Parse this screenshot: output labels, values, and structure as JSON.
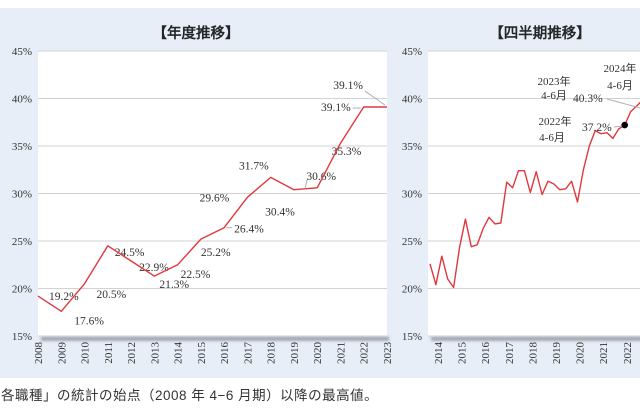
{
  "page": {
    "caption": "各職種」の統計の始点（2008 年 4−6 月期）以降の最高値。"
  },
  "colors": {
    "board_bg": "#e8eef8",
    "plot_bg": "#ffffff",
    "grid": "#d2d2d2",
    "line": "#e0383e",
    "marker": "#000000",
    "leader": "#b0b0b0",
    "text": "#333333",
    "shadow": "#8d939e"
  },
  "chart_data": [
    {
      "type": "line",
      "title": "【年度推移】",
      "categories": [
        "2008",
        "2009",
        "2010",
        "2011",
        "2012",
        "2013",
        "2014",
        "2015",
        "2016",
        "2017",
        "2018",
        "2019",
        "2020",
        "2021",
        "2022",
        "2023"
      ],
      "values": [
        19.2,
        17.6,
        20.5,
        24.5,
        22.9,
        21.3,
        22.5,
        25.2,
        26.4,
        29.6,
        31.7,
        30.4,
        30.6,
        35.3,
        39.1,
        39.1
      ],
      "xlabel": "",
      "ylabel": "",
      "ylim": [
        15,
        45
      ],
      "yticks": [
        "45%",
        "40%",
        "35%",
        "30%",
        "25%",
        "20%",
        "15%"
      ],
      "grid": true,
      "legend": false,
      "data_labels": true
    },
    {
      "type": "line",
      "title": "【四半期推移】",
      "x_start": "2014-Q1",
      "x_step_quarters": 1,
      "xticks": [
        "2014",
        "2015",
        "2016",
        "2017",
        "2018",
        "2019",
        "2020",
        "2021",
        "2022"
      ],
      "values": [
        22.6,
        20.4,
        23.4,
        21.0,
        20.1,
        24.3,
        27.3,
        24.4,
        24.6,
        26.3,
        27.5,
        26.8,
        26.9,
        31.2,
        30.6,
        32.4,
        32.4,
        30.1,
        32.3,
        29.9,
        31.3,
        31.0,
        30.4,
        30.5,
        31.3,
        29.1,
        32.5,
        35.0,
        36.6,
        36.3,
        36.4,
        35.8,
        36.8,
        37.2,
        38.6,
        39.2,
        39.8,
        40.3
      ],
      "ylim": [
        15,
        45
      ],
      "yticks": [
        "45%",
        "40%",
        "35%",
        "30%",
        "25%",
        "20%",
        "15%"
      ],
      "grid": true,
      "legend": false,
      "marker": {
        "index": 33,
        "quarter": "2022-Q2",
        "value": 37.2
      },
      "annotations": [
        {
          "line1": "2022年",
          "line2": "4-6月",
          "value": "37.2%"
        },
        {
          "line1": "2023年",
          "line2": "4-6月",
          "value": "40.3%"
        },
        {
          "line1": "2024年",
          "line2": "4-6月",
          "value": ""
        }
      ]
    }
  ]
}
